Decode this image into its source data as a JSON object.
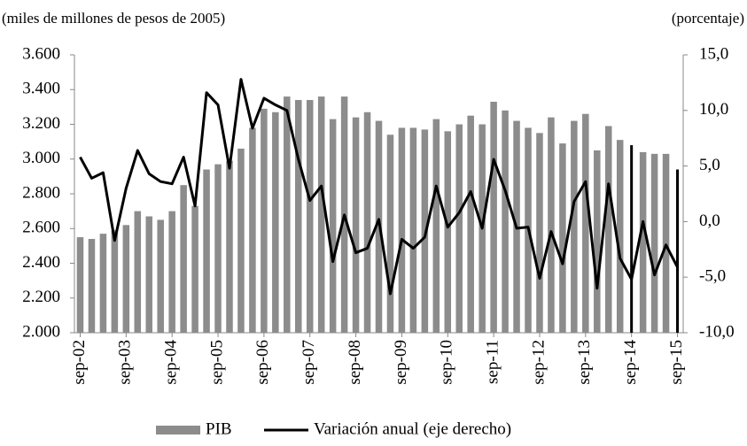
{
  "chart_data": {
    "type": "bar_line",
    "y_axis_label": "(miles de millones de pesos de 2005)",
    "y2_axis_label": "(porcentaje)",
    "categories": [
      "sep-02",
      null,
      null,
      null,
      "sep-03",
      null,
      null,
      null,
      "sep-04",
      null,
      null,
      null,
      "sep-05",
      null,
      null,
      null,
      "sep-06",
      null,
      null,
      null,
      "sep-07",
      null,
      null,
      null,
      "sep-08",
      null,
      null,
      null,
      "sep-09",
      null,
      null,
      null,
      "sep-10",
      null,
      null,
      null,
      "sep-11",
      null,
      null,
      null,
      "sep-12",
      null,
      null,
      null,
      "sep-13",
      null,
      null,
      null,
      "sep-14",
      null,
      null,
      null,
      "sep-15"
    ],
    "series": [
      {
        "name": "PIB",
        "color": "#8c8c8c",
        "colors": [
          "#8c8c8c",
          "#8c8c8c",
          "#8c8c8c",
          "#8c8c8c",
          "#8c8c8c",
          "#8c8c8c",
          "#8c8c8c",
          "#8c8c8c",
          "#8c8c8c",
          "#8c8c8c",
          "#8c8c8c",
          "#8c8c8c",
          "#8c8c8c",
          "#8c8c8c",
          "#8c8c8c",
          "#8c8c8c",
          "#8c8c8c",
          "#8c8c8c",
          "#8c8c8c",
          "#8c8c8c",
          "#8c8c8c",
          "#8c8c8c",
          "#8c8c8c",
          "#8c8c8c",
          "#8c8c8c",
          "#8c8c8c",
          "#8c8c8c",
          "#8c8c8c",
          "#8c8c8c",
          "#8c8c8c",
          "#8c8c8c",
          "#8c8c8c",
          "#8c8c8c",
          "#8c8c8c",
          "#8c8c8c",
          "#8c8c8c",
          "#8c8c8c",
          "#8c8c8c",
          "#8c8c8c",
          "#8c8c8c",
          "#8c8c8c",
          "#8c8c8c",
          "#8c8c8c",
          "#8c8c8c",
          "#8c8c8c",
          "#8c8c8c",
          "#8c8c8c",
          "#8c8c8c",
          "#000000",
          "#8c8c8c",
          "#8c8c8c",
          "#8c8c8c",
          "#000000"
        ],
        "values": [
          2550,
          2540,
          2570,
          2590,
          2620,
          2700,
          2670,
          2650,
          2700,
          2850,
          2730,
          2940,
          2970,
          2990,
          3060,
          3180,
          3290,
          3270,
          3360,
          3340,
          3340,
          3360,
          3230,
          3360,
          3240,
          3270,
          3220,
          3140,
          3180,
          3180,
          3170,
          3230,
          3160,
          3200,
          3250,
          3200,
          3330,
          3280,
          3220,
          3180,
          3150,
          3240,
          3090,
          3220,
          3260,
          3050,
          3190,
          3110,
          3080,
          3040,
          3030,
          3030,
          2940
        ]
      },
      {
        "name": "Variación anual (eje derecho)",
        "color": "#000000",
        "axis": "y2",
        "values": [
          5.8,
          3.9,
          4.4,
          -1.7,
          3.0,
          6.4,
          4.3,
          3.6,
          3.4,
          5.8,
          1.4,
          11.6,
          10.5,
          4.8,
          12.8,
          8.4,
          11.1,
          10.5,
          10.0,
          5.6,
          1.9,
          3.2,
          -3.6,
          0.6,
          -2.8,
          -2.4,
          0.2,
          -6.5,
          -1.6,
          -2.4,
          -1.4,
          3.2,
          -0.5,
          0.8,
          2.7,
          -0.6,
          5.6,
          2.8,
          -0.6,
          -0.5,
          -5.1,
          -0.9,
          -3.8,
          1.8,
          3.6,
          -6.0,
          3.4,
          -3.3,
          -5.2,
          0.0,
          -4.8,
          -2.1,
          -4.1
        ]
      }
    ],
    "ylim": [
      2000,
      3600
    ],
    "yticks": [
      {
        "value": 2000,
        "label": "2.000"
      },
      {
        "value": 2200,
        "label": "2.200"
      },
      {
        "value": 2400,
        "label": "2.400"
      },
      {
        "value": 2600,
        "label": "2.600"
      },
      {
        "value": 2800,
        "label": "2.800"
      },
      {
        "value": 3000,
        "label": "3.000"
      },
      {
        "value": 3200,
        "label": "3.200"
      },
      {
        "value": 3400,
        "label": "3.400"
      },
      {
        "value": 3600,
        "label": "3.600"
      }
    ],
    "y2lim": [
      -10,
      15
    ],
    "y2ticks": [
      {
        "value": -10,
        "label": "-10,0"
      },
      {
        "value": -5,
        "label": "-5,0"
      },
      {
        "value": 0,
        "label": "0,0"
      },
      {
        "value": 5,
        "label": "5,0"
      },
      {
        "value": 10,
        "label": "10,0"
      },
      {
        "value": 15,
        "label": "15,0"
      }
    ],
    "grid": false
  }
}
